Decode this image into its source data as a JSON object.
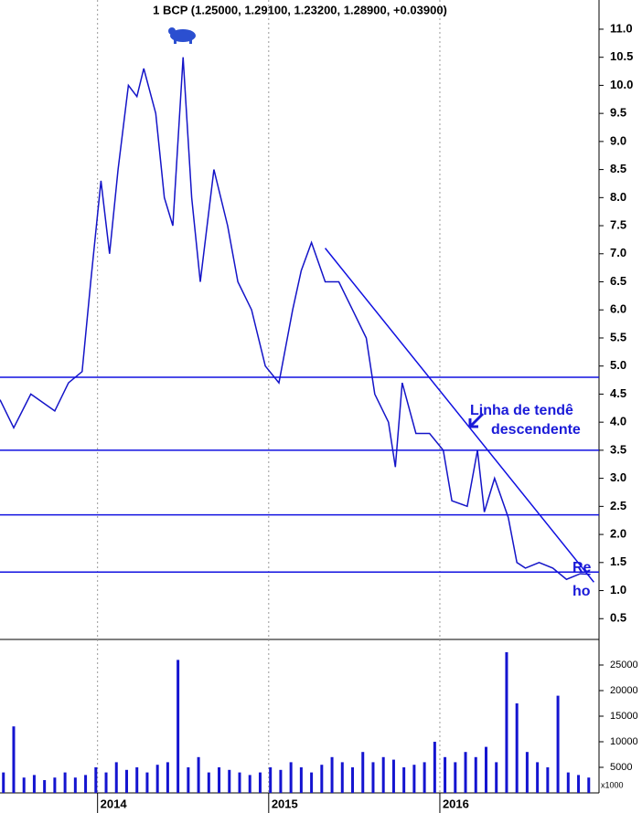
{
  "chart_data": [
    {
      "type": "line",
      "title": "1 BCP (1.25000, 1.29100, 1.23200, 1.28900, +0.03900)",
      "color": "#1414c8",
      "x": [
        2013.43,
        2013.51,
        2013.61,
        2013.75,
        2013.83,
        2013.91,
        2013.96,
        2014.02,
        2014.07,
        2014.12,
        2014.18,
        2014.23,
        2014.27,
        2014.34,
        2014.39,
        2014.44,
        2014.5,
        2014.55,
        2014.6,
        2014.68,
        2014.76,
        2014.82,
        2014.9,
        2014.98,
        2015.06,
        2015.14,
        2015.19,
        2015.25,
        2015.33,
        2015.41,
        2015.49,
        2015.57,
        2015.62,
        2015.7,
        2015.74,
        2015.78,
        2015.86,
        2015.94,
        2016.02,
        2016.07,
        2016.16,
        2016.22,
        2016.26,
        2016.32,
        2016.4,
        2016.45,
        2016.5,
        2016.58,
        2016.66,
        2016.74,
        2016.82,
        2016.88
      ],
      "values": [
        4.4,
        3.9,
        4.5,
        4.2,
        4.7,
        4.9,
        6.5,
        8.3,
        7.0,
        8.5,
        10.0,
        9.8,
        10.3,
        9.5,
        8.0,
        7.5,
        10.5,
        8.0,
        6.5,
        8.5,
        7.5,
        6.5,
        6.0,
        5.0,
        4.7,
        6.0,
        6.7,
        7.2,
        6.5,
        6.5,
        6.0,
        5.5,
        4.5,
        4.0,
        3.2,
        4.7,
        3.8,
        3.8,
        3.5,
        2.6,
        2.5,
        3.5,
        2.4,
        3.0,
        2.3,
        1.5,
        1.4,
        1.5,
        1.4,
        1.2,
        1.3,
        1.29
      ],
      "xlim": [
        2013.43,
        2016.93
      ],
      "xticks": [
        2014,
        2015,
        2016
      ],
      "ylim": [
        0.13,
        11.52
      ],
      "yticks": [
        0.5,
        {
          "value": 1.0,
          "label": "1.0"
        },
        1.5,
        {
          "value": 2.0,
          "label": "2.0"
        },
        2.5,
        {
          "value": 3.0,
          "label": "3.0"
        },
        3.5,
        {
          "value": 4.0,
          "label": "4.0"
        },
        4.5,
        {
          "value": 5.0,
          "label": "5.0"
        },
        5.5,
        {
          "value": 6.0,
          "label": "6.0"
        },
        6.5,
        {
          "value": 7.0,
          "label": "7.0"
        },
        7.5,
        {
          "value": 8.0,
          "label": "8.0"
        },
        8.5,
        {
          "value": 9.0,
          "label": "9.0"
        },
        9.5,
        {
          "value": 10.0,
          "label": "10.0"
        },
        10.5,
        {
          "value": 11.0,
          "label": "11.0"
        }
      ],
      "hlines": [
        4.8,
        3.5,
        2.35,
        1.33
      ],
      "line_color": "#1010e0",
      "trendline": {
        "x": [
          2015.33,
          2016.9
        ],
        "y": [
          7.1,
          1.15
        ]
      },
      "annotations": [
        "Linha de tendê",
        "descendente",
        "Re",
        "ho"
      ],
      "grid": true
    },
    {
      "type": "bar",
      "color": "#1414d0",
      "note": "x1000",
      "x": [
        2013.45,
        2013.51,
        2013.57,
        2013.63,
        2013.69,
        2013.75,
        2013.81,
        2013.87,
        2013.93,
        2013.99,
        2014.05,
        2014.11,
        2014.17,
        2014.23,
        2014.29,
        2014.35,
        2014.41,
        2014.47,
        2014.53,
        2014.59,
        2014.65,
        2014.71,
        2014.77,
        2014.83,
        2014.89,
        2014.95,
        2015.01,
        2015.07,
        2015.13,
        2015.19,
        2015.25,
        2015.31,
        2015.37,
        2015.43,
        2015.49,
        2015.55,
        2015.61,
        2015.67,
        2015.73,
        2015.79,
        2015.85,
        2015.91,
        2015.97,
        2016.03,
        2016.09,
        2016.15,
        2016.21,
        2016.27,
        2016.33,
        2016.39,
        2016.45,
        2016.51,
        2016.57,
        2016.63,
        2016.69,
        2016.75,
        2016.81,
        2016.87
      ],
      "values": [
        4000,
        13000,
        3000,
        3500,
        2500,
        3000,
        4000,
        3000,
        3500,
        5000,
        4000,
        6000,
        4500,
        5000,
        4000,
        5500,
        6000,
        26000,
        5000,
        7000,
        4000,
        5000,
        4500,
        4000,
        3500,
        4000,
        5000,
        4500,
        6000,
        5000,
        4000,
        5500,
        7000,
        6000,
        5000,
        8000,
        6000,
        7000,
        6500,
        5000,
        5500,
        6000,
        10000,
        7000,
        6000,
        8000,
        7000,
        9000,
        6000,
        27500,
        17500,
        8000,
        6000,
        5000,
        19000,
        4000,
        3500,
        3000
      ],
      "xlim": [
        2013.43,
        2016.93
      ],
      "xticks": [
        2014,
        2015,
        2016
      ],
      "ylim": [
        0,
        30000
      ],
      "yticks": [
        5000,
        10000,
        15000,
        20000,
        25000
      ],
      "grid": true
    }
  ]
}
